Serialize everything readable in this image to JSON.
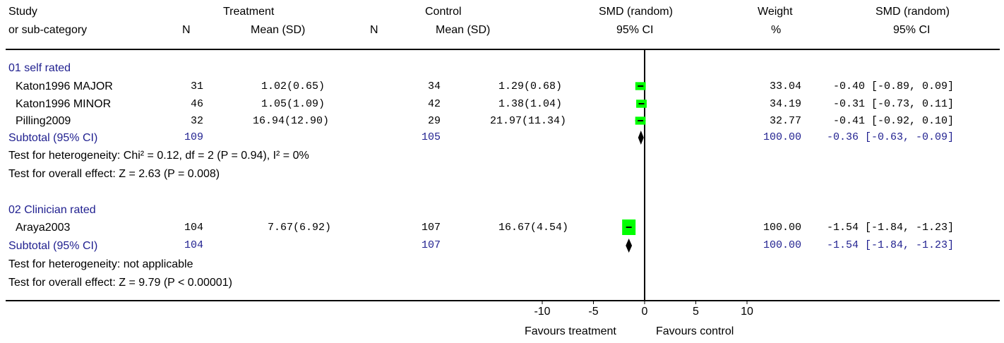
{
  "headers": {
    "study_l1": "Study",
    "study_l2": "or sub-category",
    "n_t": "N",
    "treatment_l1": "Treatment",
    "treatment_l2": "Mean (SD)",
    "n_c": "N",
    "control_l1": "Control",
    "control_l2": "Mean (SD)",
    "smd_plot_l1": "SMD (random)",
    "smd_plot_l2": "95% CI",
    "weight_l1": "Weight",
    "weight_l2": "%",
    "smd_text_l1": "SMD (random)",
    "smd_text_l2": "95% CI"
  },
  "groups": [
    {
      "name": "01 self rated",
      "studies": [
        {
          "name": "Katon1996 MAJOR",
          "n_t": "31",
          "mean_sd_t": "1.02(0.65)",
          "n_c": "34",
          "mean_sd_c": "1.29(0.68)",
          "weight": "33.04",
          "ci_text": "-0.40 [-0.89, 0.09]"
        },
        {
          "name": "Katon1996 MINOR",
          "n_t": "46",
          "mean_sd_t": "1.05(1.09)",
          "n_c": "42",
          "mean_sd_c": "1.38(1.04)",
          "weight": "34.19",
          "ci_text": "-0.31 [-0.73, 0.11]"
        },
        {
          "name": "Pilling2009",
          "n_t": "32",
          "mean_sd_t": "16.94(12.90)",
          "n_c": "29",
          "mean_sd_c": "21.97(11.34)",
          "weight": "32.77",
          "ci_text": "-0.41 [-0.92, 0.10]"
        }
      ],
      "subtotal": {
        "label": "Subtotal (95% CI)",
        "n_t": "109",
        "n_c": "105",
        "weight": "100.00",
        "ci_text": "-0.36 [-0.63, -0.09]"
      },
      "heterogeneity": "Test for heterogeneity: Chi² = 0.12, df = 2 (P = 0.94), I² = 0%",
      "overall": "Test for overall effect: Z = 2.63 (P = 0.008)"
    },
    {
      "name": "02 Clinician rated",
      "studies": [
        {
          "name": "Araya2003",
          "n_t": "104",
          "mean_sd_t": "7.67(6.92)",
          "n_c": "107",
          "mean_sd_c": "16.67(4.54)",
          "weight": "100.00",
          "ci_text": "-1.54 [-1.84, -1.23]"
        }
      ],
      "subtotal": {
        "label": "Subtotal (95% CI)",
        "n_t": "104",
        "n_c": "107",
        "weight": "100.00",
        "ci_text": "-1.54 [-1.84, -1.23]"
      },
      "heterogeneity": "Test for heterogeneity: not applicable",
      "overall": "Test for overall effect: Z = 9.79 (P < 0.00001)"
    }
  ],
  "axis": {
    "favours_left": "Favours treatment",
    "favours_right": "Favours control"
  },
  "chart_data": {
    "type": "forest",
    "xlim": [
      -10,
      10
    ],
    "xticks": [
      "-10",
      "-5",
      "0",
      "5",
      "10"
    ],
    "xtick_values": [
      -10,
      -5,
      0,
      5,
      10
    ],
    "null_line": 0,
    "studies": [
      {
        "name": "Katon1996 MAJOR",
        "smd": -0.4,
        "lo": -0.89,
        "hi": 0.09,
        "weight": 33.04
      },
      {
        "name": "Katon1996 MINOR",
        "smd": -0.31,
        "lo": -0.73,
        "hi": 0.11,
        "weight": 34.19
      },
      {
        "name": "Pilling2009",
        "smd": -0.41,
        "lo": -0.92,
        "hi": 0.1,
        "weight": 32.77
      },
      {
        "name": "Araya2003",
        "smd": -1.54,
        "lo": -1.84,
        "hi": -1.23,
        "weight": 100.0
      }
    ],
    "subtotals": [
      {
        "group": "01 self rated",
        "smd": -0.36,
        "lo": -0.63,
        "hi": -0.09
      },
      {
        "group": "02 Clinician rated",
        "smd": -1.54,
        "lo": -1.84,
        "hi": -1.23
      }
    ],
    "colors": {
      "box": "#00ff00",
      "diamond": "#000000",
      "blue_text": "#1f1f8f"
    }
  }
}
